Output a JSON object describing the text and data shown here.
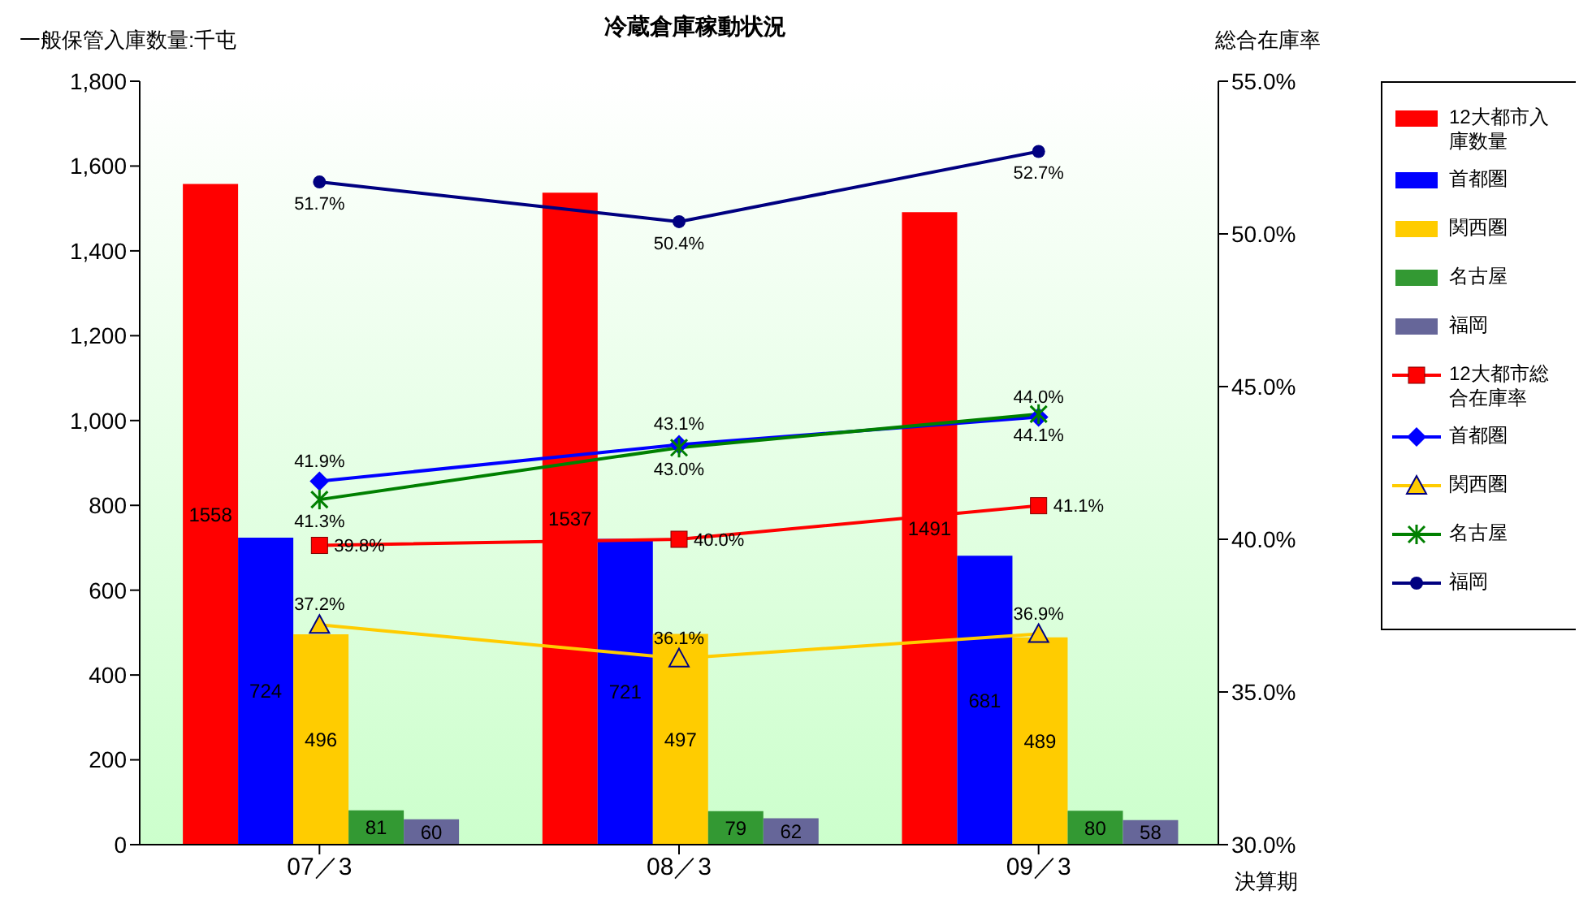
{
  "chart_data": {
    "type": "bar",
    "title": "冷蔵倉庫稼動状況",
    "ylabel": "一般保管入庫数量:千屯",
    "y2label": "総合在庫率",
    "xlabel": "決算期",
    "categories": [
      "07／3",
      "08／3",
      "09／3"
    ],
    "series": [
      {
        "name": "12大都市入庫数量",
        "color": "#ff0000",
        "values": [
          1558,
          1537,
          1491
        ]
      },
      {
        "name": "首都圏",
        "color": "#0000ff",
        "values": [
          724,
          721,
          681
        ]
      },
      {
        "name": "関西圏",
        "color": "#ffcc00",
        "values": [
          496,
          497,
          489
        ]
      },
      {
        "name": "名古屋",
        "color": "#339933",
        "values": [
          81,
          79,
          80
        ]
      },
      {
        "name": "福岡",
        "color": "#666699",
        "values": [
          60,
          62,
          58
        ]
      },
      {
        "name": "12大都市総合在庫率",
        "type": "line",
        "axis": "y2",
        "marker": "square",
        "color": "#ff0000",
        "values": [
          39.8,
          40.0,
          41.1
        ],
        "value_labels": [
          "39.8%",
          "40.0%",
          "41.1%"
        ]
      },
      {
        "name": "首都圏",
        "type": "line",
        "axis": "y2",
        "marker": "diamond",
        "color": "#0000ff",
        "values": [
          41.9,
          43.1,
          44.0
        ],
        "value_labels": [
          "41.9%",
          "43.1%",
          "44.0%"
        ]
      },
      {
        "name": "関西圏",
        "type": "line",
        "axis": "y2",
        "marker": "triangle",
        "color": "#ffcc00",
        "values": [
          37.2,
          36.1,
          36.9
        ],
        "value_labels": [
          "37.2%",
          "36.1%",
          "36.9%"
        ]
      },
      {
        "name": "名古屋",
        "type": "line",
        "axis": "y2",
        "marker": "cross",
        "color": "#008000",
        "values": [
          41.3,
          43.0,
          44.1
        ],
        "value_labels": [
          "41.3%",
          "43.0%",
          "44.1%"
        ]
      },
      {
        "name": "福岡",
        "type": "line",
        "axis": "y2",
        "marker": "circle",
        "color": "#000080",
        "values": [
          51.7,
          50.4,
          52.7
        ],
        "value_labels": [
          "51.7%",
          "50.4%",
          "52.7%"
        ]
      }
    ],
    "ylim": [
      0,
      1800
    ],
    "yticks": [
      0,
      200,
      400,
      600,
      800,
      {
        "value": 1000,
        "label": "1,000"
      },
      {
        "value": 1200,
        "label": "1,200"
      },
      {
        "value": 1400,
        "label": "1,400"
      },
      {
        "value": 1600,
        "label": "1,600"
      },
      {
        "value": 1800,
        "label": "1,800"
      }
    ],
    "y2lim": [
      30,
      55
    ],
    "y2ticks": [
      {
        "value": 30,
        "label": "30.0%"
      },
      {
        "value": 35,
        "label": "35.0%"
      },
      {
        "value": 40,
        "label": "40.0%"
      },
      {
        "value": 45,
        "label": "45.0%"
      },
      {
        "value": 50,
        "label": "50.0%"
      },
      {
        "value": 55,
        "label": "55.0%"
      }
    ],
    "data_labels": true,
    "grid": false,
    "legend": "right"
  }
}
